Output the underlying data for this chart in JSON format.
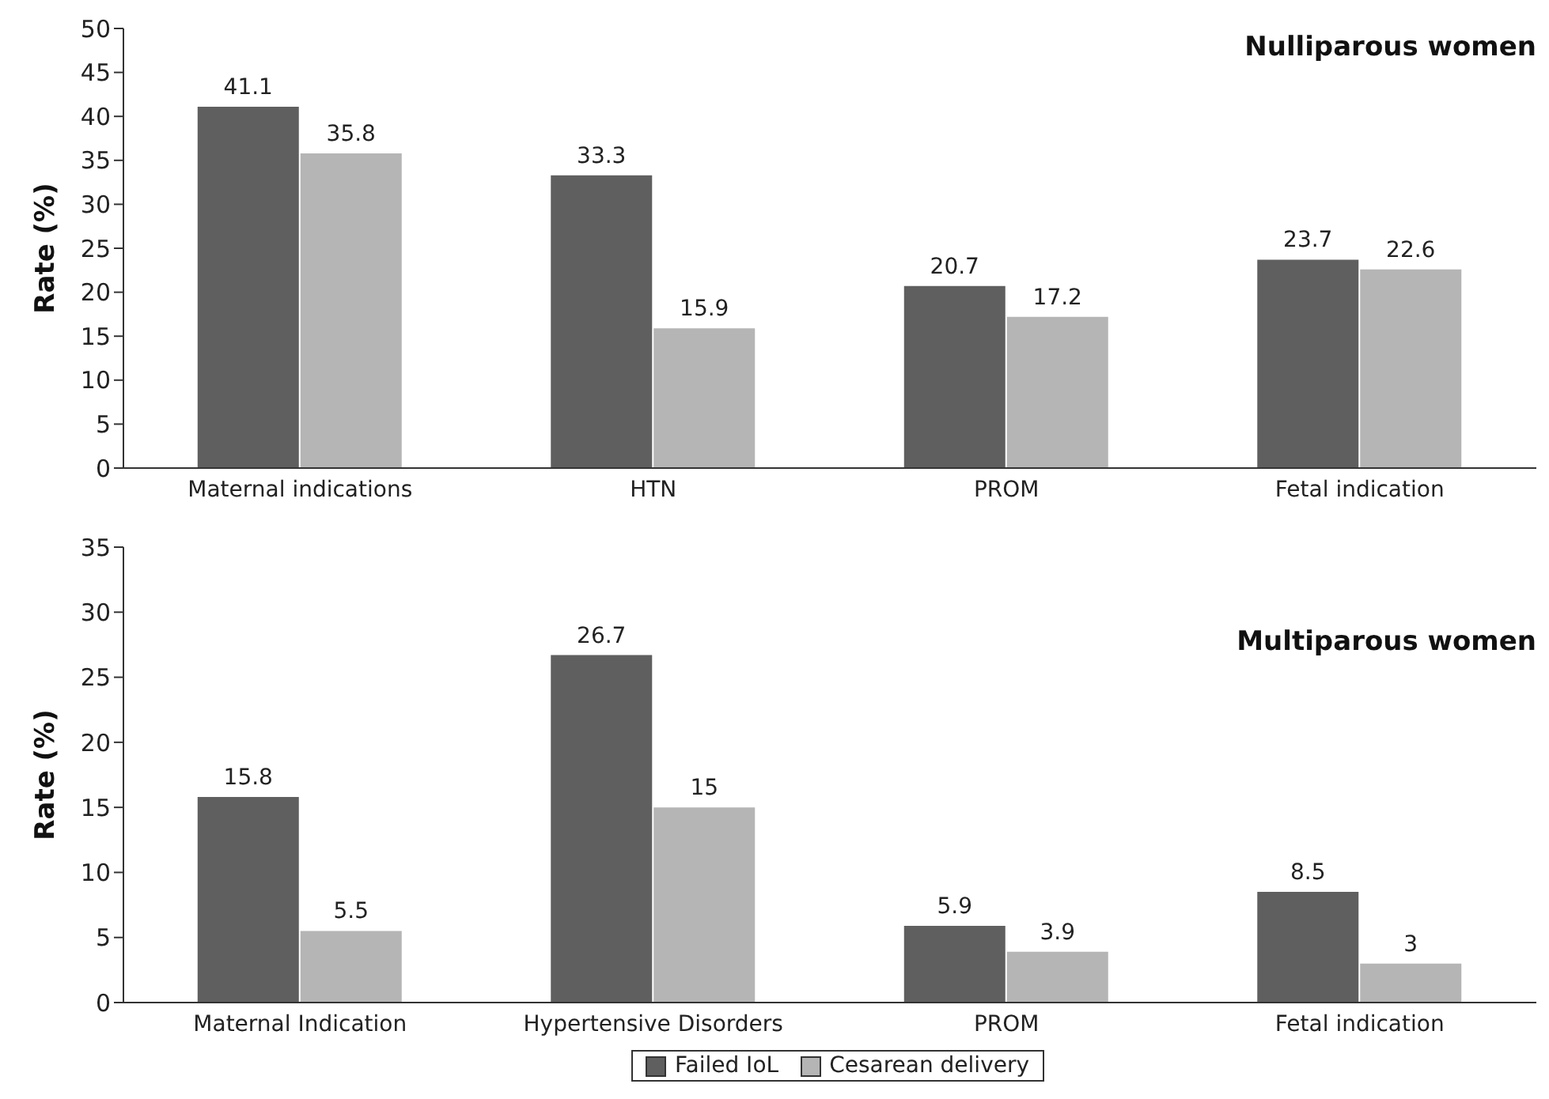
{
  "chart_data": [
    {
      "type": "bar",
      "title": "Nulliparous women",
      "ylabel": "Rate (%)",
      "categories": [
        "Maternal indications",
        "HTN",
        "PROM",
        "Fetal indication"
      ],
      "series": [
        {
          "color": "#5f5f5f",
          "values": [
            41.1,
            33.3,
            20.7,
            23.7
          ]
        },
        {
          "color": "#b5b5b5",
          "values": [
            35.8,
            15.9,
            17.2,
            22.6
          ]
        }
      ],
      "ylim": [
        0,
        50
      ],
      "yticks": [
        0,
        5,
        10,
        15,
        20,
        25,
        30,
        35,
        40,
        45,
        50
      ],
      "grid": false,
      "legend": false,
      "data_labels": true
    },
    {
      "type": "bar",
      "title": "Multiparous women",
      "ylabel": "Rate (%)",
      "categories": [
        "Maternal Indication",
        "Hypertensive Disorders",
        "PROM",
        "Fetal indication"
      ],
      "series": [
        {
          "name": "Failed IoL",
          "color": "#5f5f5f",
          "values": [
            15.8,
            26.7,
            5.9,
            8.5
          ]
        },
        {
          "name": "Cesarean delivery",
          "color": "#b5b5b5",
          "values": [
            5.5,
            15,
            3.9,
            3
          ]
        }
      ],
      "ylim": [
        0,
        35
      ],
      "yticks": [
        0,
        5,
        10,
        15,
        20,
        25,
        30,
        35
      ],
      "grid": false,
      "legend": "bottom",
      "data_labels": true
    }
  ]
}
